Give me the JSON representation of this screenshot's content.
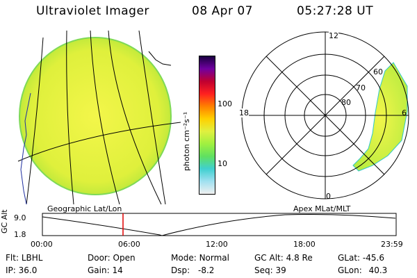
{
  "header": {
    "title": "Ultraviolet Imager",
    "date": "08 Apr 07",
    "time": "05:27:28 UT"
  },
  "colorbar": {
    "unit_label": "photon cm⁻²s⁻¹",
    "tick_100": "100",
    "tick_10": "10",
    "colors": [
      "#f0f0f0",
      "#a0e0f0",
      "#40d0d0",
      "#60e060",
      "#a0f040",
      "#e0f040",
      "#ffd000",
      "#ff8000",
      "#ff2020",
      "#c00030",
      "#7000a0",
      "#1a0040"
    ]
  },
  "polar_plot": {
    "mlt_labels": {
      "top": "12",
      "left": "18",
      "right": "6",
      "bottom": "0"
    },
    "lat_labels": [
      "60",
      "70",
      "80"
    ]
  },
  "map_captions": {
    "left": "Geographic Lat/Lon",
    "right": "Apex MLat/MLT"
  },
  "altitude_plot": {
    "y_label": "GC Alt",
    "y_ticks": [
      "9.0",
      "1.8"
    ],
    "x_ticks": [
      "00:00",
      "06:00",
      "12:00",
      "18:00",
      "23:59"
    ],
    "marker_color": "#e00000"
  },
  "info": {
    "flt_label": "Flt:",
    "flt_value": "LBHL",
    "ip_label": "IP:",
    "ip_value": "36.0",
    "door_label": "Door:",
    "door_value": "Open",
    "gain_label": "Gain:",
    "gain_value": "14",
    "mode_label": "Mode:",
    "mode_value": "Normal",
    "dsp_label": "Dsp:",
    "dsp_value": "-8.2",
    "gcalt_label": "GC Alt:",
    "gcalt_value": "4.8 Re",
    "seq_label": "Seq:",
    "seq_value": "39",
    "glat_label": "GLat:",
    "glat_value": "-45.6",
    "glon_label": "GLon:",
    "glon_value": "40.3"
  }
}
